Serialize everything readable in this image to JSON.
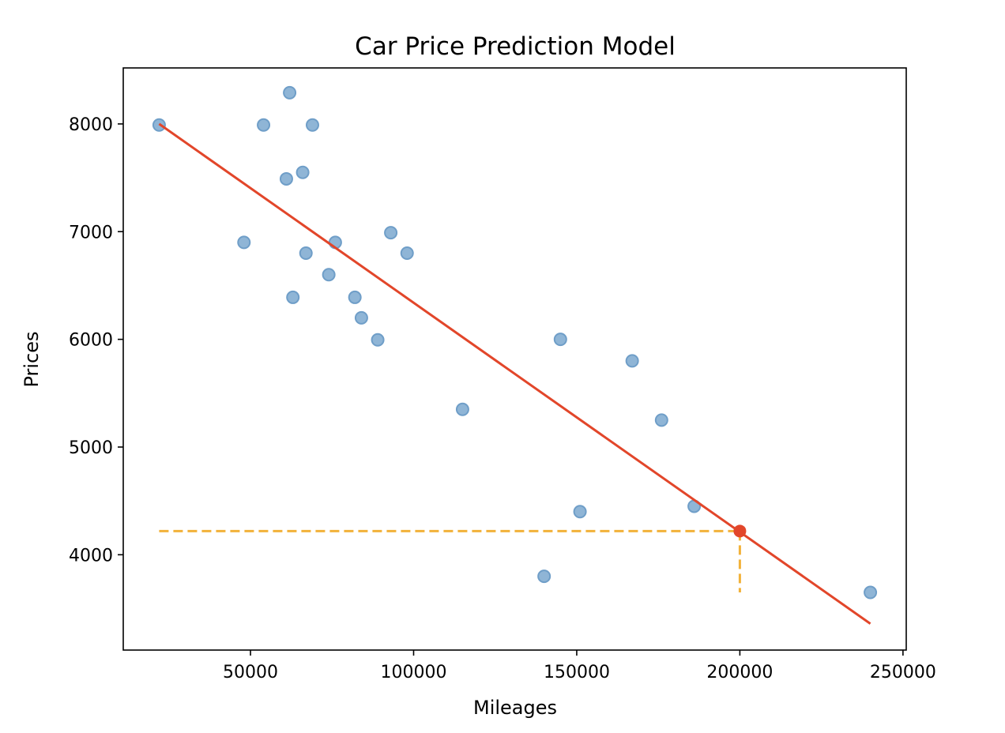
{
  "chart_data": {
    "type": "scatter",
    "title": "Car Price Prediction Model",
    "xlabel": "Mileages",
    "ylabel": "Prices",
    "xlim": [
      11000,
      251000
    ],
    "ylim": [
      3115,
      8520
    ],
    "x_ticks": [
      50000,
      100000,
      150000,
      200000,
      250000
    ],
    "y_ticks": [
      4000,
      5000,
      6000,
      7000,
      8000
    ],
    "grid": false,
    "points": [
      {
        "x": 22000,
        "y": 7990
      },
      {
        "x": 48000,
        "y": 6900
      },
      {
        "x": 54000,
        "y": 7990
      },
      {
        "x": 61000,
        "y": 7490
      },
      {
        "x": 62000,
        "y": 8290
      },
      {
        "x": 63000,
        "y": 6390
      },
      {
        "x": 66000,
        "y": 7550
      },
      {
        "x": 67000,
        "y": 6800
      },
      {
        "x": 69000,
        "y": 7990
      },
      {
        "x": 74000,
        "y": 6600
      },
      {
        "x": 76000,
        "y": 6900
      },
      {
        "x": 82000,
        "y": 6390
      },
      {
        "x": 84000,
        "y": 6200
      },
      {
        "x": 89000,
        "y": 5995
      },
      {
        "x": 93000,
        "y": 6990
      },
      {
        "x": 98000,
        "y": 6800
      },
      {
        "x": 115000,
        "y": 5350
      },
      {
        "x": 140000,
        "y": 3800
      },
      {
        "x": 145000,
        "y": 6000
      },
      {
        "x": 151000,
        "y": 4400
      },
      {
        "x": 167000,
        "y": 5800
      },
      {
        "x": 176000,
        "y": 5250
      },
      {
        "x": 186000,
        "y": 4450
      },
      {
        "x": 240000,
        "y": 3650
      }
    ],
    "regression_line": {
      "x": [
        22000,
        240000
      ],
      "y": [
        8000,
        3360
      ]
    },
    "prediction": {
      "x": 200000,
      "y": 4220
    },
    "guide_lines_from": {
      "x": 22000,
      "y": 3650
    },
    "colors": {
      "points": "#8fb5d6",
      "points_edge": "#6f9ec8",
      "line": "#e2462a",
      "prediction": "#e2462a",
      "guides": "#f2b23a"
    }
  }
}
